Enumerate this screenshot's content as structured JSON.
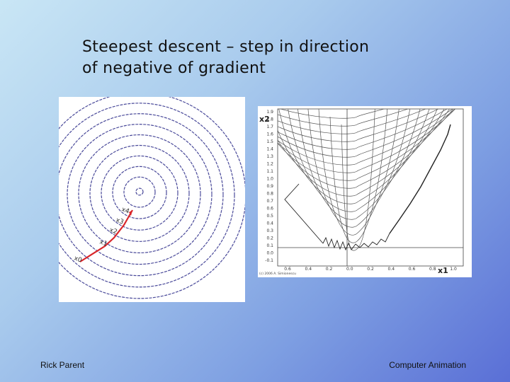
{
  "slide": {
    "title_line1": "Steepest descent – step in direction",
    "title_line2": "of negative of gradient"
  },
  "left_diagram": {
    "labels": [
      "x0",
      "x1",
      "x2",
      "x3",
      "x4"
    ],
    "contour_color": "#4a4a9a",
    "path_color": "#d9262a"
  },
  "right_diagram": {
    "y_axis_label": "x2",
    "x_axis_label": "x1",
    "y_ticks": [
      "1.9",
      "1.8",
      "1.7",
      "1.6",
      "1.5",
      "1.4",
      "1.3",
      "1.2",
      "1.1",
      "1.0",
      "0.9",
      "0.8",
      "0.7",
      "0.6",
      "0.5",
      "0.4",
      "0.3",
      "0.2",
      "0.1",
      "0.0",
      "-0.1"
    ],
    "x_ticks": [
      "0.6",
      "0.4",
      "0.2",
      "0.0",
      "0.2",
      "0.4",
      "0.6",
      "0.8",
      "1.0"
    ],
    "credit": "(c) 2006 A. Simionescu",
    "contour_color": "#555555"
  },
  "footer": {
    "left": "Rick Parent",
    "right": "Computer Animation"
  }
}
